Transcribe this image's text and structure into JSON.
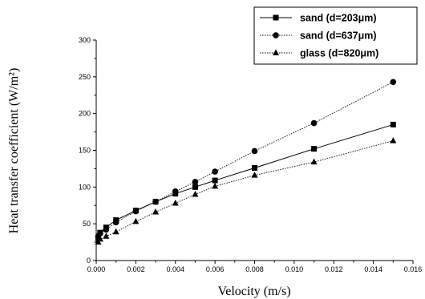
{
  "chart_data": {
    "type": "line",
    "xlabel": "Velocity (m/s)",
    "ylabel": "Heat transfer coefficient (W/m²)",
    "xlim": [
      0,
      0.016
    ],
    "ylim": [
      0,
      300
    ],
    "x_ticks": [
      "0.000",
      "0.002",
      "0.004",
      "0.006",
      "0.008",
      "0.010",
      "0.012",
      "0.014",
      "0.016"
    ],
    "y_ticks": [
      "0",
      "50",
      "100",
      "150",
      "200",
      "250",
      "300"
    ],
    "legend_position": "top-right",
    "series": [
      {
        "name": "sand (d=203μm)",
        "marker": "square",
        "line_style": "solid",
        "x": [
          0.0001,
          0.0002,
          0.0005,
          0.001,
          0.002,
          0.003,
          0.004,
          0.005,
          0.006,
          0.008,
          0.011,
          0.015
        ],
        "y": [
          30,
          38,
          45,
          55,
          68,
          80,
          91,
          100,
          109,
          126,
          152,
          185
        ]
      },
      {
        "name": "sand (d=637μm)",
        "marker": "circle",
        "line_style": "dotted",
        "x": [
          0.0001,
          0.0002,
          0.0005,
          0.001,
          0.002,
          0.003,
          0.004,
          0.005,
          0.006,
          0.008,
          0.011,
          0.015
        ],
        "y": [
          33,
          37,
          42,
          52,
          67,
          80,
          94,
          107,
          121,
          149,
          187,
          243
        ]
      },
      {
        "name": "glass (d=820μm)",
        "marker": "triangle",
        "line_style": "dotted",
        "x": [
          0.0001,
          0.0002,
          0.0005,
          0.001,
          0.002,
          0.003,
          0.004,
          0.005,
          0.006,
          0.008,
          0.011,
          0.015
        ],
        "y": [
          25,
          29,
          33,
          39,
          53,
          66,
          78,
          90,
          101,
          116,
          134,
          163
        ]
      }
    ]
  }
}
